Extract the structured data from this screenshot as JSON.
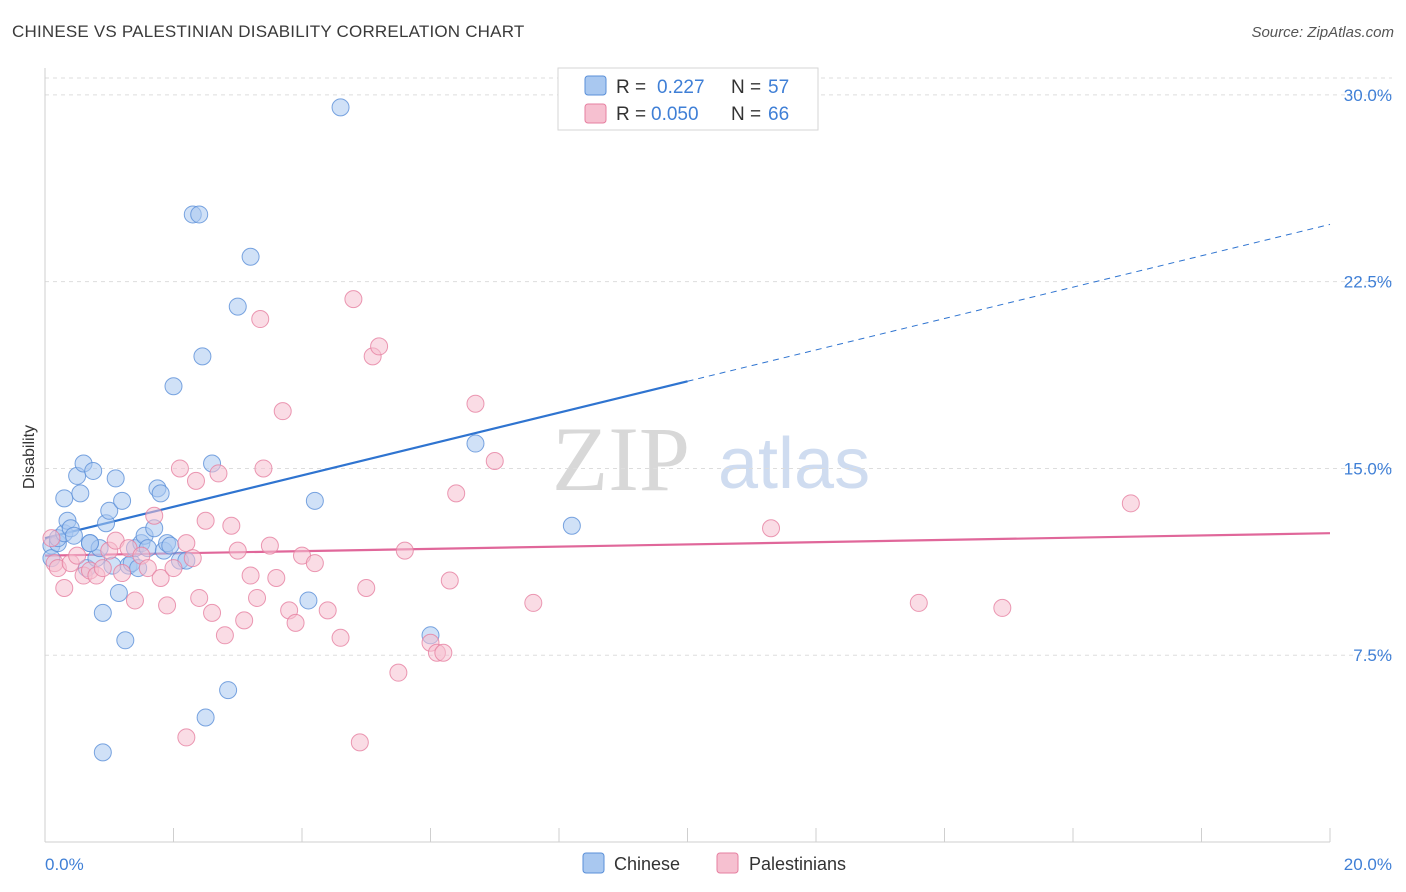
{
  "header": {
    "title": "CHINESE VS PALESTINIAN DISABILITY CORRELATION CHART",
    "source": "Source: ZipAtlas.com"
  },
  "watermark": {
    "zip": "ZIP",
    "atlas": "atlas"
  },
  "colors": {
    "chinese_fill": "#a9c8f0",
    "chinese_stroke": "#5a8fd8",
    "chinese_line": "#2f74d0",
    "palestinian_fill": "#f6c0d0",
    "palestinian_stroke": "#e67fa0",
    "palestinian_line": "#e0679a",
    "tick_text": "#3f7fd6",
    "grid": "#dddddd"
  },
  "legend": {
    "chinese": {
      "r_label": "R = ",
      "r_value": "0.227",
      "n_label": "N = ",
      "n_value": "57"
    },
    "palestinians": {
      "r_label": "R = ",
      "r_value": "0.050",
      "n_label": "N = ",
      "n_value": "66"
    }
  },
  "bottom_legend": {
    "chinese": "Chinese",
    "palestinians": "Palestinians"
  },
  "chart_data": {
    "type": "scatter",
    "title": "CHINESE VS PALESTINIAN DISABILITY CORRELATION CHART",
    "xlabel": "",
    "ylabel": "Disability",
    "xlim": [
      0,
      20
    ],
    "ylim": [
      0,
      31
    ],
    "x_tick_labels": [
      "0.0%",
      "20.0%"
    ],
    "y_ticks": [
      7.5,
      15.0,
      22.5,
      30.0
    ],
    "y_tick_labels": [
      "7.5%",
      "15.0%",
      "22.5%",
      "30.0%"
    ],
    "grid": true,
    "legend_position": "top-center",
    "series": [
      {
        "name": "Chinese",
        "r": 0.227,
        "n": 57,
        "trend": {
          "x0": 0,
          "y0": 12.2,
          "x1": 10,
          "y1": 18.5,
          "dashed_to_x": 20,
          "dashed_to_y": 24.8
        },
        "points": [
          [
            0.1,
            11.9
          ],
          [
            0.1,
            11.4
          ],
          [
            0.2,
            12.0
          ],
          [
            0.2,
            12.2
          ],
          [
            0.3,
            12.4
          ],
          [
            0.3,
            13.8
          ],
          [
            0.35,
            12.9
          ],
          [
            0.4,
            12.6
          ],
          [
            0.45,
            12.3
          ],
          [
            0.5,
            14.7
          ],
          [
            0.55,
            14.0
          ],
          [
            0.6,
            15.2
          ],
          [
            0.65,
            11.0
          ],
          [
            0.7,
            12.0
          ],
          [
            0.75,
            14.9
          ],
          [
            0.8,
            11.4
          ],
          [
            0.85,
            11.8
          ],
          [
            0.9,
            9.2
          ],
          [
            0.95,
            12.8
          ],
          [
            1.0,
            13.3
          ],
          [
            1.05,
            11.1
          ],
          [
            1.1,
            14.6
          ],
          [
            1.15,
            10.0
          ],
          [
            1.2,
            13.7
          ],
          [
            1.25,
            8.1
          ],
          [
            1.3,
            11.1
          ],
          [
            1.35,
            11.2
          ],
          [
            1.4,
            11.8
          ],
          [
            1.45,
            11.0
          ],
          [
            1.5,
            12.0
          ],
          [
            1.55,
            12.3
          ],
          [
            1.6,
            11.8
          ],
          [
            1.7,
            12.6
          ],
          [
            1.75,
            14.2
          ],
          [
            1.8,
            14.0
          ],
          [
            1.85,
            11.7
          ],
          [
            1.9,
            12.0
          ],
          [
            1.95,
            11.9
          ],
          [
            2.0,
            18.3
          ],
          [
            2.1,
            11.3
          ],
          [
            2.2,
            11.3
          ],
          [
            2.3,
            25.2
          ],
          [
            2.4,
            25.2
          ],
          [
            2.45,
            19.5
          ],
          [
            2.5,
            5.0
          ],
          [
            2.6,
            15.2
          ],
          [
            2.85,
            6.1
          ],
          [
            3.0,
            21.5
          ],
          [
            3.2,
            23.5
          ],
          [
            4.1,
            9.7
          ],
          [
            4.2,
            13.7
          ],
          [
            4.6,
            29.5
          ],
          [
            6.0,
            8.3
          ],
          [
            6.7,
            16.0
          ],
          [
            8.2,
            12.7
          ],
          [
            0.9,
            3.6
          ],
          [
            0.7,
            12.0
          ]
        ]
      },
      {
        "name": "Palestinians",
        "r": 0.05,
        "n": 66,
        "trend": {
          "x0": 0,
          "y0": 11.5,
          "x1": 20,
          "y1": 12.4
        },
        "points": [
          [
            0.1,
            12.2
          ],
          [
            0.15,
            11.2
          ],
          [
            0.2,
            11.0
          ],
          [
            0.3,
            10.2
          ],
          [
            0.4,
            11.2
          ],
          [
            0.5,
            11.5
          ],
          [
            0.6,
            10.7
          ],
          [
            0.7,
            10.9
          ],
          [
            0.8,
            10.7
          ],
          [
            0.9,
            11.0
          ],
          [
            1.0,
            11.7
          ],
          [
            1.1,
            12.1
          ],
          [
            1.2,
            10.8
          ],
          [
            1.3,
            11.8
          ],
          [
            1.4,
            9.7
          ],
          [
            1.5,
            11.5
          ],
          [
            1.6,
            11.0
          ],
          [
            1.7,
            13.1
          ],
          [
            1.8,
            10.6
          ],
          [
            1.9,
            9.5
          ],
          [
            2.0,
            11.0
          ],
          [
            2.1,
            15.0
          ],
          [
            2.2,
            12.0
          ],
          [
            2.3,
            11.4
          ],
          [
            2.4,
            9.8
          ],
          [
            2.5,
            12.9
          ],
          [
            2.6,
            9.2
          ],
          [
            2.7,
            14.8
          ],
          [
            2.8,
            8.3
          ],
          [
            2.9,
            12.7
          ],
          [
            3.0,
            11.7
          ],
          [
            3.1,
            8.9
          ],
          [
            3.2,
            10.7
          ],
          [
            3.3,
            9.8
          ],
          [
            3.35,
            21.0
          ],
          [
            3.4,
            15.0
          ],
          [
            3.5,
            11.9
          ],
          [
            3.6,
            10.6
          ],
          [
            3.7,
            17.3
          ],
          [
            3.8,
            9.3
          ],
          [
            3.9,
            8.8
          ],
          [
            4.0,
            11.5
          ],
          [
            4.2,
            11.2
          ],
          [
            4.4,
            9.3
          ],
          [
            4.6,
            8.2
          ],
          [
            4.8,
            21.8
          ],
          [
            4.9,
            4.0
          ],
          [
            5.0,
            10.2
          ],
          [
            5.1,
            19.5
          ],
          [
            5.2,
            19.9
          ],
          [
            5.5,
            6.8
          ],
          [
            5.6,
            11.7
          ],
          [
            6.0,
            8.0
          ],
          [
            6.1,
            7.6
          ],
          [
            6.2,
            7.6
          ],
          [
            6.3,
            10.5
          ],
          [
            6.4,
            14.0
          ],
          [
            6.7,
            17.6
          ],
          [
            7.0,
            15.3
          ],
          [
            7.6,
            9.6
          ],
          [
            11.3,
            12.6
          ],
          [
            13.6,
            9.6
          ],
          [
            14.9,
            9.4
          ],
          [
            16.9,
            13.6
          ],
          [
            2.2,
            4.2
          ],
          [
            2.35,
            14.5
          ]
        ]
      }
    ]
  }
}
